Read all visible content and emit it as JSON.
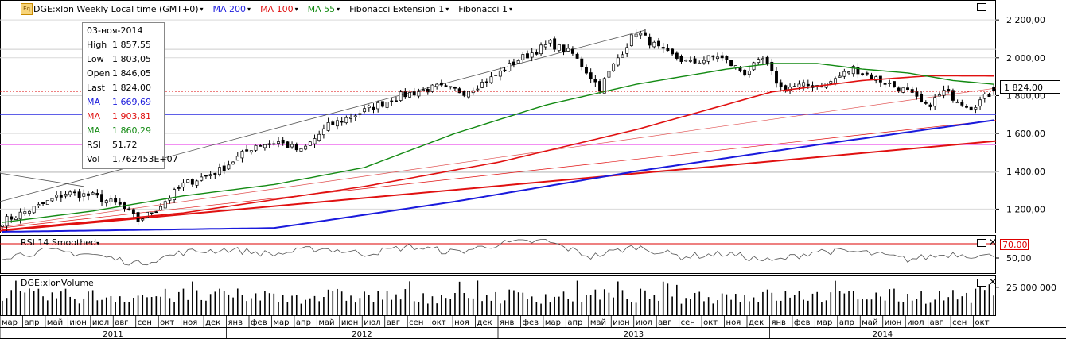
{
  "toolbar": {
    "symbol_title": "DGE:xlon Weekly Local time (GMT+0)",
    "ma200_label": "MA 200",
    "ma100_label": "MA 100",
    "ma55_label": "MA 55",
    "fib_ext_label": "Fibonacci Extension 1",
    "fib_label": "Fibonacci 1",
    "eq_icon_text": "Eq"
  },
  "tooltip": {
    "date": "03-ноя-2014",
    "rows": [
      {
        "label": "High",
        "value": "1 857,55",
        "color": "#000000"
      },
      {
        "label": "Low",
        "value": "1 803,05",
        "color": "#000000"
      },
      {
        "label": "Open",
        "value": "1 846,05",
        "color": "#000000"
      },
      {
        "label": "Last",
        "value": "1 824,00",
        "color": "#000000"
      },
      {
        "label": "MA",
        "value": "1 669,69",
        "color": "#1a1adc"
      },
      {
        "label": "MA",
        "value": "1 903,81",
        "color": "#e01010"
      },
      {
        "label": "MA",
        "value": "1 860,29",
        "color": "#138a13"
      },
      {
        "label": "RSI",
        "value": "51,72",
        "color": "#000000"
      },
      {
        "label": "Vol",
        "value": "1,762453E+07",
        "color": "#000000"
      }
    ]
  },
  "price_tag": "1 824,00",
  "rsi_panel": {
    "title": "RSI 14 Smoothed",
    "upper_tag": "70,00",
    "tick_50": "50,00"
  },
  "volume_panel": {
    "title": "DGE:xlonVolume",
    "tick": "25 000 000"
  },
  "colors": {
    "ma200": "#1a1adc",
    "ma100": "#e01010",
    "ma55": "#138a13",
    "rsi_line": "#555555",
    "volume": "#000000",
    "grid": "#d9d9d9",
    "fib": "#e05050",
    "pink": "#f0a0f0"
  },
  "chart_data": {
    "type": "candlestick",
    "title": "DGE:xlon Weekly Local time (GMT+0)",
    "y_ticks": [
      "1 200,00",
      "1 400,00",
      "1 600,00",
      "1 800,00",
      "2 000,00",
      "2 200,00"
    ],
    "y_tick_values": [
      1200,
      1400,
      1600,
      1800,
      2000,
      2200
    ],
    "ylim": [
      1080,
      2230
    ],
    "month_labels": [
      "мар",
      "апр",
      "май",
      "июн",
      "июл",
      "авг",
      "сен",
      "окт",
      "ноя",
      "дек",
      "янв",
      "фев",
      "мар",
      "апр",
      "май",
      "июн",
      "июл",
      "авг",
      "сен",
      "окт",
      "ноя",
      "дек",
      "янв",
      "фев",
      "мар",
      "апр",
      "май",
      "июн",
      "июл",
      "авг",
      "сен",
      "окт",
      "ноя",
      "дек",
      "янв",
      "фев",
      "мар",
      "апр",
      "май",
      "июн",
      "июл",
      "авг",
      "сен",
      "окт"
    ],
    "year_labels": [
      "2011",
      "2012",
      "2013",
      "2014"
    ],
    "close_anchors": [
      [
        0,
        1135
      ],
      [
        8,
        1215
      ],
      [
        14,
        1285
      ],
      [
        20,
        1270
      ],
      [
        26,
        1220
      ],
      [
        30,
        1140
      ],
      [
        34,
        1200
      ],
      [
        40,
        1330
      ],
      [
        48,
        1405
      ],
      [
        56,
        1540
      ],
      [
        61,
        1555
      ],
      [
        66,
        1505
      ],
      [
        72,
        1640
      ],
      [
        80,
        1720
      ],
      [
        88,
        1800
      ],
      [
        96,
        1845
      ],
      [
        102,
        1820
      ],
      [
        108,
        1890
      ],
      [
        114,
        1990
      ],
      [
        121,
        2075
      ],
      [
        126,
        2020
      ],
      [
        132,
        1840
      ],
      [
        136,
        2000
      ],
      [
        140,
        2140
      ],
      [
        146,
        2030
      ],
      [
        152,
        1970
      ],
      [
        158,
        2010
      ],
      [
        164,
        1920
      ],
      [
        168,
        1990
      ],
      [
        172,
        1840
      ],
      [
        176,
        1850
      ],
      [
        182,
        1860
      ],
      [
        188,
        1945
      ],
      [
        194,
        1880
      ],
      [
        200,
        1820
      ],
      [
        204,
        1740
      ],
      [
        208,
        1820
      ],
      [
        214,
        1740
      ],
      [
        219,
        1824
      ]
    ],
    "ma55_anchors": [
      [
        0,
        1130
      ],
      [
        20,
        1190
      ],
      [
        40,
        1270
      ],
      [
        60,
        1330
      ],
      [
        80,
        1420
      ],
      [
        100,
        1600
      ],
      [
        120,
        1750
      ],
      [
        140,
        1860
      ],
      [
        160,
        1940
      ],
      [
        170,
        1970
      ],
      [
        180,
        1970
      ],
      [
        190,
        1940
      ],
      [
        200,
        1920
      ],
      [
        210,
        1880
      ],
      [
        219,
        1860
      ]
    ],
    "ma100_anchors": [
      [
        0,
        1090
      ],
      [
        40,
        1180
      ],
      [
        80,
        1320
      ],
      [
        110,
        1450
      ],
      [
        140,
        1620
      ],
      [
        170,
        1820
      ],
      [
        190,
        1880
      ],
      [
        205,
        1905
      ],
      [
        219,
        1904
      ]
    ],
    "ma200_anchors": [
      [
        0,
        1080
      ],
      [
        60,
        1100
      ],
      [
        100,
        1240
      ],
      [
        140,
        1400
      ],
      [
        180,
        1540
      ],
      [
        219,
        1670
      ]
    ],
    "rsi_anchors": [
      [
        0,
        52
      ],
      [
        10,
        60
      ],
      [
        20,
        55
      ],
      [
        30,
        42
      ],
      [
        40,
        58
      ],
      [
        50,
        62
      ],
      [
        60,
        55
      ],
      [
        70,
        64
      ],
      [
        80,
        56
      ],
      [
        90,
        66
      ],
      [
        100,
        58
      ],
      [
        110,
        70
      ],
      [
        120,
        74
      ],
      [
        130,
        52
      ],
      [
        140,
        66
      ],
      [
        150,
        52
      ],
      [
        160,
        56
      ],
      [
        170,
        45
      ],
      [
        180,
        60
      ],
      [
        190,
        58
      ],
      [
        200,
        48
      ],
      [
        210,
        56
      ],
      [
        219,
        51.72
      ]
    ],
    "rsi_ylim": [
      30,
      80
    ],
    "rsi_upper": 70,
    "last_value": 1824,
    "last_volume": 17624530
  }
}
